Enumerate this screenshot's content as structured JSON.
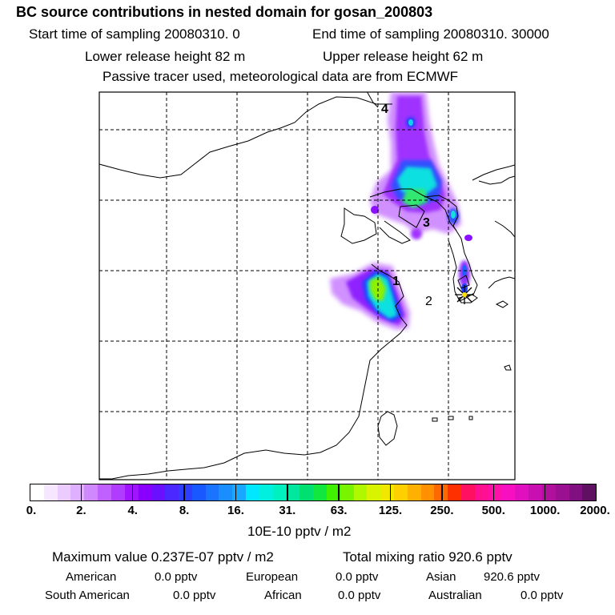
{
  "header": {
    "title": "BC  source contributions in nested domain for gosan_200803",
    "start_time": "Start time of sampling 20080310.     0",
    "end_time": "End time of sampling 20080310. 30000",
    "lower_release": "Lower release height   82 m",
    "upper_release": "Upper release height   62 m",
    "tracer_note": "Passive tracer used, meteorological data are from ECMWF"
  },
  "map": {
    "region_labels": [
      "1",
      "2",
      "3",
      "4"
    ],
    "receptor": "gosan"
  },
  "colorbar": {
    "ticks": [
      "0.",
      "2.",
      "4.",
      "8.",
      "16.",
      "31.",
      "63.",
      "125.",
      "250.",
      "500.",
      "1000.",
      "2000."
    ],
    "colors": [
      "#ffffff",
      "#f6e6ff",
      "#ecccff",
      "#dfb0ff",
      "#d088ff",
      "#c060ff",
      "#b03cff",
      "#a014ff",
      "#8a00ff",
      "#6a10ff",
      "#4a28ff",
      "#2e3eff",
      "#1a58ff",
      "#1a74ff",
      "#1a8eff",
      "#18a8ff",
      "#00e8ff",
      "#00f0e0",
      "#00f0c0",
      "#00e8a0",
      "#00e070",
      "#10e840",
      "#40f000",
      "#78f400",
      "#b0f800",
      "#d8f400",
      "#f0e800",
      "#ffd000",
      "#ffb000",
      "#ff9000",
      "#ff6800",
      "#ff3000",
      "#ff1060",
      "#ff1090",
      "#ff10a8",
      "#f810c0",
      "#e010c0",
      "#c810b0",
      "#b0109c",
      "#9a1090",
      "#801080",
      "#601060"
    ],
    "units": "10E-10 pptv / m2"
  },
  "footer": {
    "maximum": "Maximum value  0.237E-07 pptv / m2",
    "total": "Total mixing ratio     920.6 pptv",
    "rows": [
      [
        {
          "label": "American",
          "value": "0.0 pptv"
        },
        {
          "label": "European",
          "value": "0.0 pptv"
        },
        {
          "label": "Asian",
          "value": "920.6 pptv"
        }
      ],
      [
        {
          "label": "South American",
          "value": "0.0 pptv"
        },
        {
          "label": "African",
          "value": "0.0 pptv"
        },
        {
          "label": "Australian",
          "value": "0.0 pptv"
        }
      ]
    ]
  }
}
